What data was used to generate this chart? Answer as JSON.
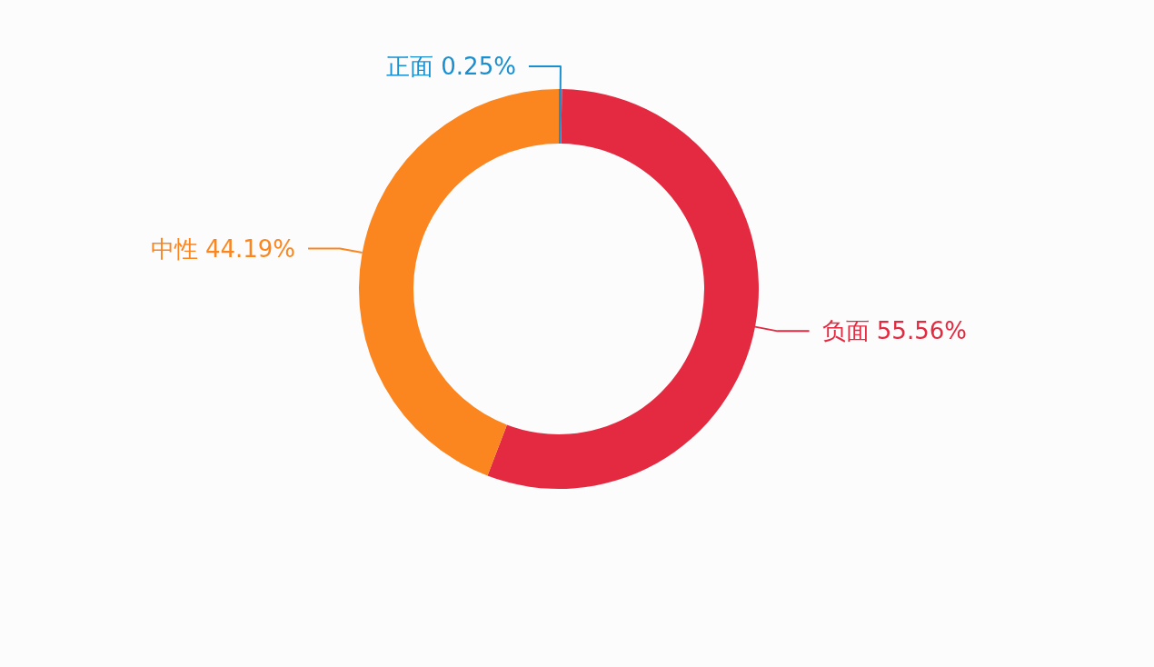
{
  "chart_data": {
    "type": "donut",
    "categories": [
      "正面",
      "负面",
      "中性"
    ],
    "values": [
      0.25,
      55.56,
      44.19
    ],
    "colors": [
      "#1a8fd0",
      "#e42a40",
      "#fb851f"
    ],
    "value_labels": [
      "0.25%",
      "55.56%",
      "44.19%"
    ]
  }
}
